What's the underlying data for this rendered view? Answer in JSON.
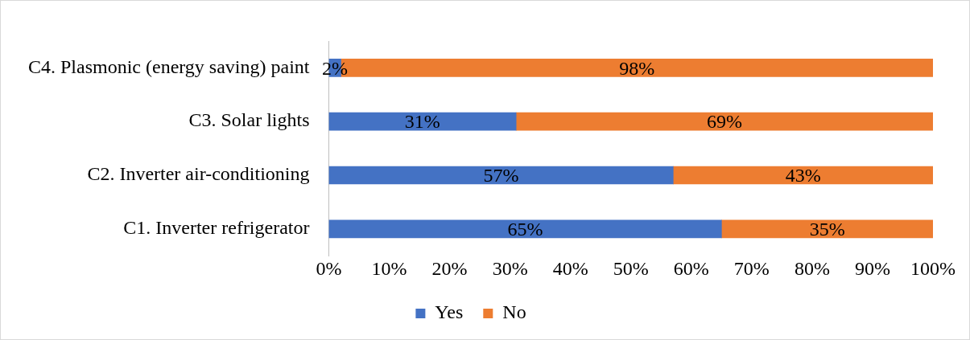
{
  "chart_data": {
    "type": "bar",
    "orientation": "horizontal",
    "stacked": true,
    "categories": [
      "C4. Plasmonic (energy saving) paint",
      "C3. Solar lights",
      "C2. Inverter air-conditioning",
      "C1. Inverter refrigerator"
    ],
    "series": [
      {
        "name": "Yes",
        "color": "#4472c4",
        "values": [
          2,
          31,
          57,
          65
        ],
        "value_labels": [
          "2%",
          "31%",
          "57%",
          "65%"
        ]
      },
      {
        "name": "No",
        "color": "#ed7d31",
        "values": [
          98,
          69,
          43,
          35
        ],
        "value_labels": [
          "98%",
          "69%",
          "43%",
          "35%"
        ]
      }
    ],
    "xlim": [
      0,
      100
    ],
    "xticks": [
      {
        "value": 0,
        "label": "0%"
      },
      {
        "value": 10,
        "label": "10%"
      },
      {
        "value": 20,
        "label": "20%"
      },
      {
        "value": 30,
        "label": "30%"
      },
      {
        "value": 40,
        "label": "40%"
      },
      {
        "value": 50,
        "label": "50%"
      },
      {
        "value": 60,
        "label": "60%"
      },
      {
        "value": 70,
        "label": "70%"
      },
      {
        "value": 80,
        "label": "80%"
      },
      {
        "value": 90,
        "label": "90%"
      },
      {
        "value": 100,
        "label": "100%"
      }
    ],
    "grid": false,
    "legend": "bottom"
  }
}
